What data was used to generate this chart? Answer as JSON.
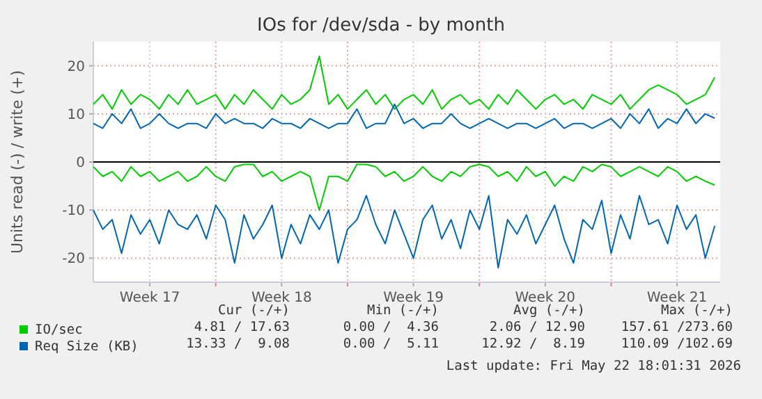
{
  "chart_data": {
    "type": "line",
    "title": "IOs for /dev/sda - by month",
    "ylabel": "Units read (-) / write (+)",
    "x": [
      "2026-04-20T12:00",
      "2026-04-21T00:00",
      "2026-04-21T12:00",
      "2026-04-22T00:00",
      "2026-04-22T12:00",
      "2026-04-23T00:00",
      "2026-04-23T12:00",
      "2026-04-24T00:00",
      "2026-04-24T12:00",
      "2026-04-25T00:00",
      "2026-04-25T12:00",
      "2026-04-26T00:00",
      "2026-04-26T12:00",
      "2026-04-27T00:00",
      "2026-04-27T12:00",
      "2026-04-28T00:00",
      "2026-04-28T12:00",
      "2026-04-29T00:00",
      "2026-04-29T12:00",
      "2026-04-30T00:00",
      "2026-04-30T12:00",
      "2026-05-01T00:00",
      "2026-05-01T12:00",
      "2026-05-02T00:00",
      "2026-05-02T12:00",
      "2026-05-03T00:00",
      "2026-05-03T12:00",
      "2026-05-04T00:00",
      "2026-05-04T12:00",
      "2026-05-05T00:00",
      "2026-05-05T12:00",
      "2026-05-06T00:00",
      "2026-05-06T12:00",
      "2026-05-07T00:00",
      "2026-05-07T12:00",
      "2026-05-08T00:00",
      "2026-05-08T12:00",
      "2026-05-09T00:00",
      "2026-05-09T12:00",
      "2026-05-10T00:00",
      "2026-05-10T12:00",
      "2026-05-11T00:00",
      "2026-05-11T12:00",
      "2026-05-12T00:00",
      "2026-05-12T12:00",
      "2026-05-13T00:00",
      "2026-05-13T12:00",
      "2026-05-14T00:00",
      "2026-05-14T12:00",
      "2026-05-15T00:00",
      "2026-05-15T12:00",
      "2026-05-16T00:00",
      "2026-05-16T12:00",
      "2026-05-17T00:00",
      "2026-05-17T12:00",
      "2026-05-18T00:00",
      "2026-05-18T12:00",
      "2026-05-19T00:00",
      "2026-05-19T12:00",
      "2026-05-20T00:00",
      "2026-05-20T12:00",
      "2026-05-21T00:00",
      "2026-05-21T12:00",
      "2026-05-22T00:00",
      "2026-05-22T12:00",
      "2026-05-23T00:00",
      "2026-05-23T12:00"
    ],
    "xlim": [
      "2026-04-20T12:00",
      "2026-05-23T19:00"
    ],
    "xticks": [
      {
        "value": "2026-04-23T12:00",
        "label": "Week 17"
      },
      {
        "value": "2026-04-27T00:00",
        "label": null
      },
      {
        "value": "2026-04-30T12:00",
        "label": "Week 18"
      },
      {
        "value": "2026-05-04T00:00",
        "label": null
      },
      {
        "value": "2026-05-07T12:00",
        "label": "Week 19"
      },
      {
        "value": "2026-05-11T00:00",
        "label": null
      },
      {
        "value": "2026-05-14T12:00",
        "label": "Week 20"
      },
      {
        "value": "2026-05-18T00:00",
        "label": null
      },
      {
        "value": "2026-05-21T12:00",
        "label": "Week 21"
      }
    ],
    "ylim": [
      -25,
      25
    ],
    "yticks": [
      -20,
      -10,
      0,
      10,
      20
    ],
    "grid": true,
    "legend": "bottom",
    "ref_lines": [
      {
        "axis": "y",
        "value": 0,
        "color": "#000000"
      }
    ],
    "series": [
      {
        "name": "IO/sec",
        "color": "#00cc00",
        "values": [
          12,
          14,
          11,
          15,
          12,
          14,
          13,
          11,
          14,
          12,
          15,
          12,
          13,
          14,
          11,
          14,
          12,
          15,
          13,
          11,
          14,
          12,
          13,
          15,
          22,
          12,
          14,
          11,
          13,
          15,
          12,
          14,
          11,
          13,
          14,
          12,
          15,
          11,
          13,
          14,
          12,
          13,
          11,
          14,
          12,
          15,
          13,
          11,
          13,
          14,
          12,
          13,
          11,
          14,
          13,
          12,
          14,
          11,
          13,
          15,
          16,
          15,
          14,
          12,
          13,
          14,
          17.6
        ]
      },
      {
        "color": "#00cc00",
        "values": [
          -1,
          -3,
          -2,
          -4,
          -1,
          -3,
          -2,
          -4,
          -3,
          -2,
          -4,
          -3,
          -1,
          -3,
          -4,
          -1,
          -0.5,
          -0.5,
          -3,
          -2,
          -4,
          -3,
          -2,
          -3,
          -10,
          -3,
          -3,
          -4,
          -0.5,
          -0.5,
          -1,
          -3,
          -2,
          -4,
          -3,
          -1,
          -3,
          -4,
          -2,
          -3,
          -1,
          -0.5,
          -1,
          -3,
          -2,
          -4,
          -1,
          -3,
          -2,
          -5,
          -3,
          -4,
          -1,
          -2,
          -0.5,
          -1,
          -3,
          -2,
          -1,
          -2,
          -3,
          -1,
          -2,
          -4,
          -3,
          -4,
          -4.8
        ]
      },
      {
        "name": "Req Size (KB)",
        "color": "#0066b3",
        "values": [
          8,
          7,
          10,
          8,
          11,
          7,
          8,
          10,
          8,
          7,
          8,
          8,
          7,
          10,
          8,
          9,
          8,
          8,
          7,
          9,
          8,
          8,
          7,
          9,
          8,
          7,
          8,
          8,
          11,
          7,
          8,
          8,
          12,
          8,
          9,
          7,
          8,
          8,
          10,
          8,
          7,
          8,
          9,
          8,
          7,
          8,
          8,
          7,
          8,
          9,
          7,
          8,
          8,
          7,
          8,
          9,
          7,
          10,
          8,
          11,
          7,
          9,
          8,
          11,
          8,
          10,
          9.1
        ]
      },
      {
        "color": "#0066b3",
        "values": [
          -10,
          -14,
          -12,
          -19,
          -11,
          -15,
          -12,
          -17,
          -10,
          -13,
          -14,
          -11,
          -16,
          -9,
          -12,
          -21,
          -11,
          -16,
          -13,
          -9,
          -20,
          -13,
          -17,
          -11,
          -14,
          -10,
          -21,
          -14,
          -12,
          -7,
          -13,
          -17,
          -10,
          -15,
          -20,
          -12,
          -9,
          -16,
          -12,
          -18,
          -10,
          -14,
          -7,
          -22,
          -12,
          -15,
          -11,
          -17,
          -13,
          -9,
          -16,
          -21,
          -12,
          -14,
          -8,
          -19,
          -11,
          -16,
          -7,
          -13,
          -12,
          -17,
          -9,
          -14,
          -11,
          -20,
          -13.3
        ]
      }
    ],
    "annotations": [
      "Cur (-/+)",
      "Min (-/+)",
      "Avg (-/+)",
      "Max (-/+)",
      "4.81 / 17.63",
      "0.00 /  4.36",
      "2.06 / 12.90",
      "157.61 /273.60",
      "13.33 /  9.08",
      "0.00 /  5.11",
      "12.92 /  8.19",
      "110.09 /102.69",
      "Last update: Fri May 22 18:01:31 2026"
    ]
  }
}
